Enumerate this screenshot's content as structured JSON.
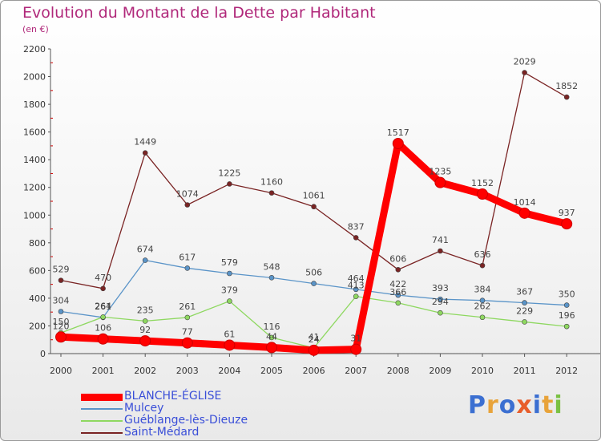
{
  "title": "Evolution du Montant de la Dette par Habitant",
  "subtitle": "(en €)",
  "logo_text": "Proxiti",
  "chart_data": {
    "type": "line",
    "title": "Evolution du Montant de la Dette par Habitant",
    "subtitle": "(en €)",
    "xlabel": "",
    "ylabel": "",
    "ylim": [
      0,
      2200
    ],
    "yticks": [
      0,
      200,
      400,
      600,
      800,
      1000,
      1200,
      1400,
      1600,
      1800,
      2000,
      2200
    ],
    "categories": [
      "2000",
      "2001",
      "2002",
      "2003",
      "2004",
      "2005",
      "2006",
      "2007",
      "2008",
      "2009",
      "2010",
      "2011",
      "2012"
    ],
    "grid": false,
    "legend_position": "bottom-left",
    "series": [
      {
        "name": "BLANCHE-ÉGLISE",
        "color": "#ff0000",
        "values": [
          120,
          106,
          92,
          77,
          61,
          44,
          24,
          31,
          1517,
          1235,
          1152,
          1014,
          937
        ],
        "labels": [
          "120",
          "106",
          "92",
          "77",
          "61",
          "44",
          "24",
          "31",
          "1517",
          "1235",
          "1152",
          "1014",
          "937"
        ]
      },
      {
        "name": "Mulcey",
        "color": "#5a94c8",
        "values": [
          304,
          261,
          674,
          617,
          579,
          548,
          506,
          464,
          422,
          393,
          384,
          367,
          350
        ],
        "labels": [
          "304",
          "261",
          "674",
          "617",
          "579",
          "548",
          "506",
          "464",
          "422",
          "393",
          "384",
          "367",
          "350"
        ]
      },
      {
        "name": "Guéblange-lès-Dieuze",
        "color": "#8ed860",
        "values": [
          150,
          264,
          235,
          261,
          379,
          116,
          41,
          413,
          366,
          294,
          262,
          229,
          196
        ],
        "labels": [
          "150",
          "264",
          "235",
          "261",
          "379",
          "116",
          "41",
          "413",
          "366",
          "294",
          "262",
          "229",
          "196"
        ]
      },
      {
        "name": "Saint-Médard",
        "color": "#7a2424",
        "values": [
          529,
          470,
          1449,
          1074,
          1225,
          1160,
          1061,
          837,
          606,
          741,
          636,
          2029,
          1852
        ],
        "labels": [
          "529",
          "470",
          "1449",
          "1074",
          "1225",
          "1160",
          "1061",
          "837",
          "606",
          "741",
          "636",
          "2029",
          "1852"
        ]
      }
    ]
  }
}
